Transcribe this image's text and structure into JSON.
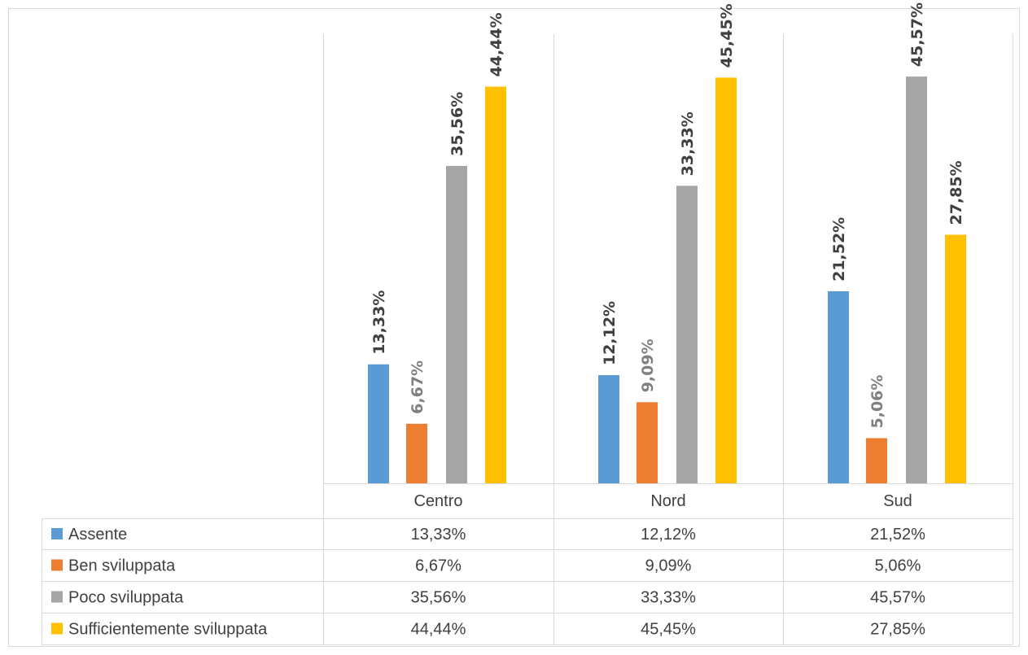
{
  "chart_data": {
    "type": "bar",
    "categories": [
      "Centro",
      "Nord",
      "Sud"
    ],
    "series": [
      {
        "name": "Assente",
        "color": "#5b9bd5",
        "values": [
          13.33,
          12.12,
          21.52
        ],
        "labels": [
          "13,33%",
          "12,12%",
          "21,52%"
        ],
        "label_color": "#404040"
      },
      {
        "name": "Ben sviluppata",
        "color": "#ed7d31",
        "values": [
          6.67,
          9.09,
          5.06
        ],
        "labels": [
          "6,67%",
          "9,09%",
          "5,06%"
        ],
        "label_color": "#808080"
      },
      {
        "name": "Poco sviluppata",
        "color": "#a5a5a5",
        "values": [
          35.56,
          33.33,
          45.57
        ],
        "labels": [
          "35,56%",
          "33,33%",
          "45,57%"
        ],
        "label_color": "#404040"
      },
      {
        "name": "Sufficientemente sviluppata",
        "color": "#ffc000",
        "values": [
          44.44,
          45.45,
          27.85
        ],
        "labels": [
          "44,44%",
          "45,45%",
          "27,85%"
        ],
        "label_color": "#404040"
      }
    ],
    "ylim": [
      0,
      50
    ],
    "data_table": true,
    "legend": "data-table-rows",
    "title": "",
    "xlabel": "",
    "ylabel": ""
  }
}
